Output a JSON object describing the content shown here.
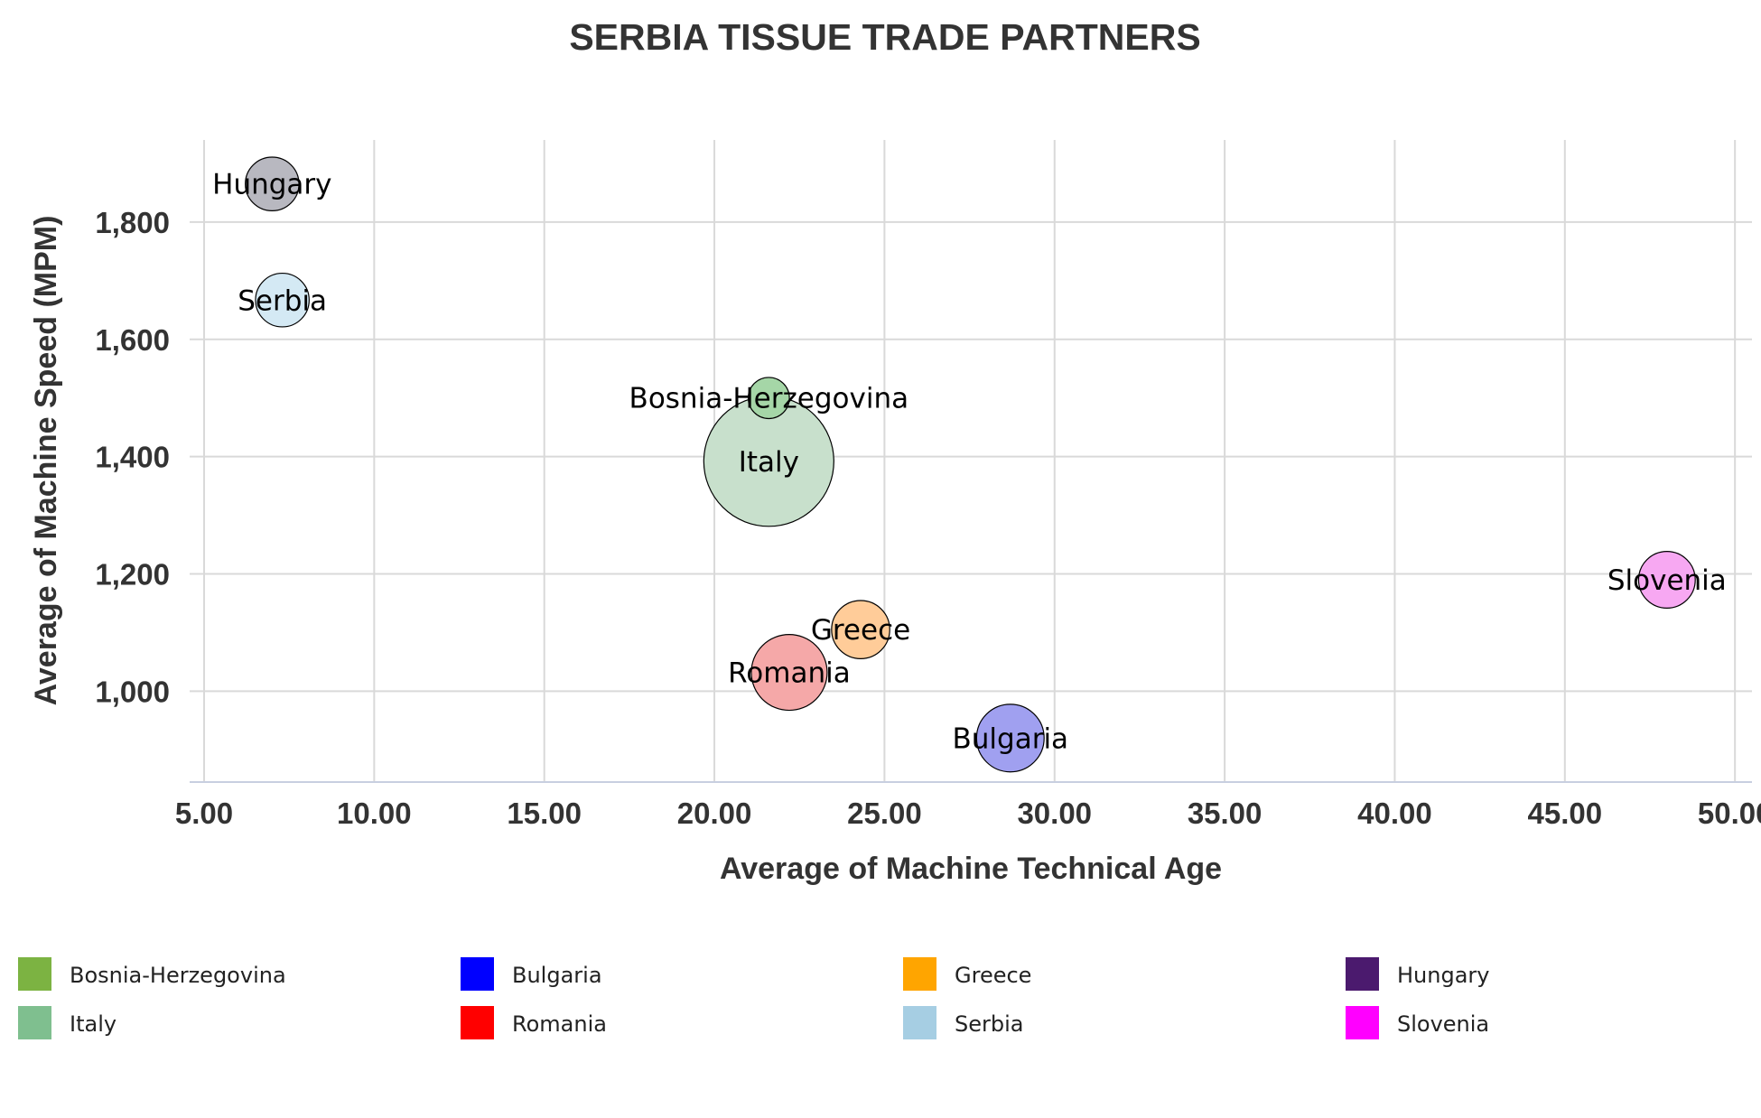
{
  "chart_data": {
    "type": "scatter",
    "title": "SERBIA TISSUE TRADE PARTNERS",
    "xlabel": "Average of Machine Technical Age",
    "ylabel": "Average of Machine Speed (MPM)",
    "xlim": [
      5,
      50.5
    ],
    "ylim": [
      845,
      1940
    ],
    "x_ticks": [
      5,
      10,
      15,
      20,
      25,
      30,
      35,
      40,
      45,
      50
    ],
    "x_tick_labels": [
      "5.00",
      "10.00",
      "15.00",
      "20.00",
      "25.00",
      "30.00",
      "35.00",
      "40.00",
      "45.00",
      "50.00"
    ],
    "y_ticks": [
      1000,
      1200,
      1400,
      1600,
      1800
    ],
    "y_tick_labels": [
      "1,000",
      "1,200",
      "1,400",
      "1,600",
      "1,800"
    ],
    "grid": true,
    "legend_placement": "bottom",
    "series": [
      {
        "name": "Bosnia-Herzegovina",
        "x": 21.6,
        "y": 1500,
        "size": 0.1,
        "color": "#7cb342",
        "point_color": "#a5d6a7"
      },
      {
        "name": "Bulgaria",
        "x": 28.7,
        "y": 920,
        "size": 0.27,
        "color": "#0000ff",
        "point_color": "#a0a0f0"
      },
      {
        "name": "Greece",
        "x": 24.3,
        "y": 1105,
        "size": 0.2,
        "color": "#ffa500",
        "point_color": "#ffcc99"
      },
      {
        "name": "Hungary",
        "x": 7.0,
        "y": 1865,
        "size": 0.17,
        "color": "#4b1a6e",
        "point_color": "#b8b8c0"
      },
      {
        "name": "Italy",
        "x": 21.6,
        "y": 1392,
        "size": 1.0,
        "color": "#7fbf8f",
        "point_color": "#c8e0cc"
      },
      {
        "name": "Romania",
        "x": 22.2,
        "y": 1032,
        "size": 0.34,
        "color": "#ff0000",
        "point_color": "#f5a8a8"
      },
      {
        "name": "Serbia",
        "x": 7.3,
        "y": 1667,
        "size": 0.17,
        "color": "#a6cee3",
        "point_color": "#d4e9f4"
      },
      {
        "name": "Slovenia",
        "x": 48.0,
        "y": 1190,
        "size": 0.19,
        "color": "#ff00ff",
        "point_color": "#f7a8f2"
      }
    ]
  }
}
